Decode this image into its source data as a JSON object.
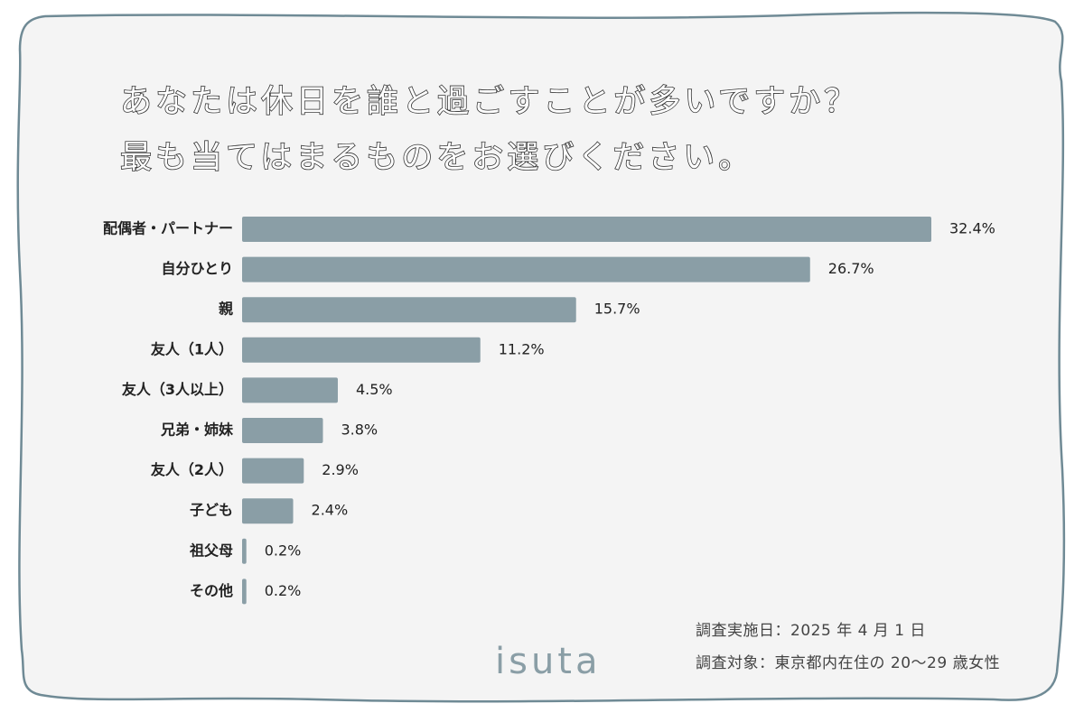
{
  "title": {
    "line1": "あなたは休日を誰と過ごすことが多いですか？",
    "line2": "最も当てはまるものをお選びください。"
  },
  "chart_data": {
    "type": "bar",
    "orientation": "horizontal",
    "categories": [
      "配偶者・パートナー",
      "自分ひとり",
      "親",
      "友人（1人）",
      "友人（3人以上）",
      "兄弟・姉妹",
      "友人（2人）",
      "子ども",
      "祖父母",
      "その他"
    ],
    "values": [
      32.4,
      26.7,
      15.7,
      11.2,
      4.5,
      3.8,
      2.9,
      2.4,
      0.2,
      0.2
    ],
    "value_labels": [
      "32.4%",
      "26.7%",
      "15.7%",
      "11.2%",
      "4.5%",
      "3.8%",
      "2.9%",
      "2.4%",
      "0.2%",
      "0.2%"
    ],
    "xlim": [
      0,
      32.4
    ],
    "grid": false,
    "bar_color": "#8a9ea6"
  },
  "notes": {
    "date": "調査実施日：2025 年 4 月 1 日",
    "target": "調査対象：東京都内在住の 20〜29 歳女性"
  },
  "logo": "isuta",
  "colors": {
    "background": "#f4f4f4",
    "frame_stroke": "#6f8a95"
  }
}
